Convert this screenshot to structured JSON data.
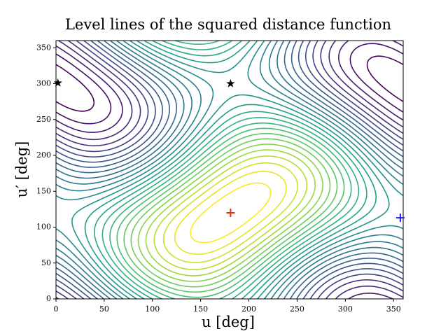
{
  "chart_data": {
    "type": "contour",
    "title": "Level lines of the squared distance function",
    "x_label": "u [deg]",
    "y_label": "u′ [deg]",
    "xlim": [
      0,
      360
    ],
    "ylim": [
      0,
      360
    ],
    "xticks": [
      0,
      50,
      100,
      150,
      200,
      250,
      300,
      350
    ],
    "yticks": [
      0,
      50,
      100,
      150,
      200,
      250,
      300,
      350
    ],
    "colormap": "viridis",
    "levels": [
      -1.9,
      -1.76,
      -1.62,
      -1.48,
      -1.34,
      -1.2,
      -1.06,
      -0.92,
      -0.78,
      -0.64,
      -0.5,
      -0.36,
      -0.22,
      -0.08,
      0.06,
      0.2,
      0.34,
      0.48,
      0.62,
      0.76,
      0.9,
      1.04,
      1.18,
      1.32,
      1.46,
      1.6,
      1.74,
      1.88
    ],
    "points": [
      {
        "x": 2,
        "y": 301,
        "marker": "star",
        "color": "#000000"
      },
      {
        "x": 181,
        "y": 300,
        "marker": "star",
        "color": "#000000"
      },
      {
        "x": 181,
        "y": 120,
        "marker": "plus",
        "color": "#e8300c"
      },
      {
        "x": 357,
        "y": 113,
        "marker": "plus",
        "color": "#1a1aff"
      }
    ]
  }
}
